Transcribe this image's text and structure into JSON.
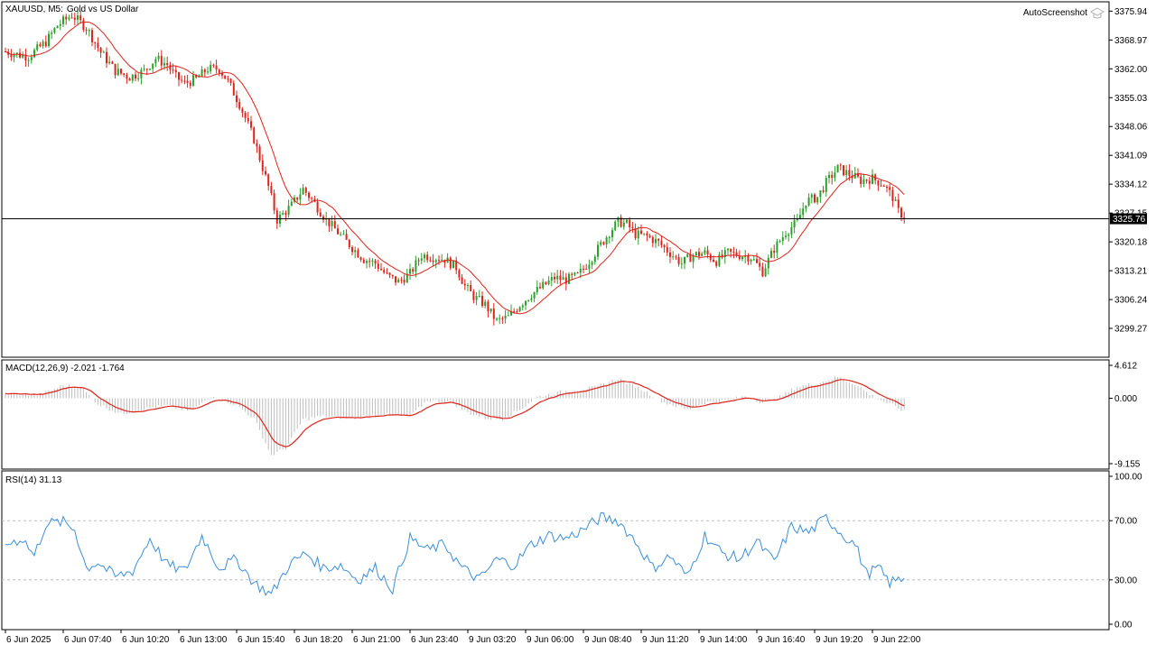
{
  "header": {
    "symbol_timeframe": "XAUUSD, M5:",
    "description": "Gold vs US Dollar",
    "watermark": "AutoScreenshot"
  },
  "colors": {
    "bull_candle": "#2ca02c",
    "bear_candle": "#e0241b",
    "moving_average": "#e0241b",
    "macd_signal": "#e0241b",
    "macd_histogram": "#bdbdbd",
    "rsi_line": "#3b8fd9",
    "rsi_levels": "#bdbdbd",
    "grid_frame": "#000000"
  },
  "chart_data": [
    {
      "type": "candlestick",
      "title": "XAUUSD, M5: Gold vs US Dollar",
      "ylim": [
        3292.3,
        3378.2
      ],
      "y_ticks": [
        "3375.94",
        "3368.97",
        "3362.00",
        "3355.03",
        "3348.06",
        "3341.09",
        "3334.12",
        "3327.15",
        "3320.18",
        "3313.21",
        "3306.24",
        "3299.27"
      ],
      "current_price": "3325.76",
      "moving_average_note": "red moving average overlay",
      "price_path": [
        [
          0,
          3366.2
        ],
        [
          4,
          3365.5
        ],
        [
          8,
          3365.0
        ],
        [
          14,
          3368.5
        ],
        [
          18,
          3372.5
        ],
        [
          23,
          3375.0
        ],
        [
          28,
          3372.0
        ],
        [
          33,
          3366.0
        ],
        [
          38,
          3361.5
        ],
        [
          43,
          3360.0
        ],
        [
          48,
          3361.5
        ],
        [
          52,
          3364.5
        ],
        [
          56,
          3363.0
        ],
        [
          59,
          3360.0
        ],
        [
          62,
          3358.5
        ],
        [
          66,
          3359.5
        ],
        [
          70,
          3362.0
        ],
        [
          74,
          3362.0
        ],
        [
          77,
          3359.0
        ],
        [
          81,
          3353.5
        ],
        [
          86,
          3345.0
        ],
        [
          91,
          3333.5
        ],
        [
          94,
          3325.5
        ],
        [
          99,
          3329.0
        ],
        [
          103,
          3333.0
        ],
        [
          107,
          3329.5
        ],
        [
          111,
          3325.5
        ],
        [
          115,
          3322.5
        ],
        [
          119,
          3319.5
        ],
        [
          124,
          3316.0
        ],
        [
          128,
          3315.0
        ],
        [
          132,
          3312.0
        ],
        [
          136,
          3310.5
        ],
        [
          140,
          3312.5
        ],
        [
          144,
          3317.0
        ],
        [
          148,
          3316.5
        ],
        [
          152,
          3316.0
        ],
        [
          156,
          3314.0
        ],
        [
          159,
          3309.5
        ],
        [
          162,
          3307.0
        ],
        [
          166,
          3305.0
        ],
        [
          170,
          3301.0
        ],
        [
          174,
          3302.0
        ],
        [
          178,
          3305.0
        ],
        [
          182,
          3307.5
        ],
        [
          186,
          3309.5
        ],
        [
          190,
          3311.5
        ],
        [
          194,
          3311.0
        ],
        [
          198,
          3312.0
        ],
        [
          202,
          3315.5
        ],
        [
          206,
          3319.5
        ],
        [
          209,
          3322.5
        ],
        [
          212,
          3325.0
        ],
        [
          215,
          3324.5
        ],
        [
          218,
          3322.0
        ],
        [
          222,
          3321.5
        ],
        [
          226,
          3320.0
        ],
        [
          230,
          3317.5
        ],
        [
          234,
          3315.0
        ],
        [
          238,
          3317.0
        ],
        [
          242,
          3317.5
        ],
        [
          246,
          3315.5
        ],
        [
          250,
          3317.5
        ],
        [
          254,
          3317.0
        ],
        [
          258,
          3316.5
        ],
        [
          262,
          3313.0
        ],
        [
          266,
          3318.5
        ],
        [
          270,
          3322.5
        ],
        [
          274,
          3325.0
        ],
        [
          277,
          3330.0
        ],
        [
          281,
          3331.0
        ],
        [
          284,
          3334.5
        ],
        [
          288,
          3338.0
        ],
        [
          292,
          3336.5
        ],
        [
          296,
          3335.0
        ],
        [
          300,
          3335.5
        ],
        [
          304,
          3334.0
        ],
        [
          307,
          3331.0
        ],
        [
          309,
          3327.5
        ],
        [
          311,
          3326.3
        ]
      ]
    },
    {
      "type": "line",
      "indicator": "MACD(12,26,9)",
      "legend": "MACD(12,26,9) -2.021 -1.764",
      "ylim": [
        -9.155,
        4.612
      ],
      "y_ticks": [
        "4.612",
        "0.000",
        "-9.155"
      ],
      "macd_path": [
        [
          0,
          0.6
        ],
        [
          12,
          0.5
        ],
        [
          20,
          1.8
        ],
        [
          26,
          1.6
        ],
        [
          32,
          -0.8
        ],
        [
          40,
          -2.2
        ],
        [
          48,
          -1.5
        ],
        [
          56,
          -1.0
        ],
        [
          64,
          -1.8
        ],
        [
          72,
          0.4
        ],
        [
          80,
          -1.0
        ],
        [
          86,
          -2.8
        ],
        [
          92,
          -8.0
        ],
        [
          97,
          -7.0
        ],
        [
          103,
          -3.0
        ],
        [
          110,
          -2.5
        ],
        [
          120,
          -2.8
        ],
        [
          130,
          -2.2
        ],
        [
          140,
          -2.6
        ],
        [
          146,
          -0.3
        ],
        [
          154,
          -0.5
        ],
        [
          160,
          -2.0
        ],
        [
          166,
          -2.8
        ],
        [
          172,
          -2.9
        ],
        [
          178,
          -1.6
        ],
        [
          184,
          0.2
        ],
        [
          194,
          1.0
        ],
        [
          204,
          1.5
        ],
        [
          212,
          2.8
        ],
        [
          220,
          1.3
        ],
        [
          228,
          -0.6
        ],
        [
          236,
          -1.6
        ],
        [
          242,
          -0.6
        ],
        [
          250,
          -0.3
        ],
        [
          256,
          0.3
        ],
        [
          262,
          -0.6
        ],
        [
          268,
          0.2
        ],
        [
          274,
          1.6
        ],
        [
          282,
          2.2
        ],
        [
          288,
          3.0
        ],
        [
          294,
          2.0
        ],
        [
          300,
          0.3
        ],
        [
          306,
          -0.8
        ],
        [
          311,
          -1.8
        ]
      ],
      "signal_last": -1.764,
      "macd_last": -2.021
    },
    {
      "type": "line",
      "indicator": "RSI(14)",
      "legend": "RSI(14) 31.13",
      "ylim": [
        0,
        100
      ],
      "y_ticks": [
        "100.00",
        "70.00",
        "30.00",
        "0.00"
      ],
      "levels": [
        70,
        30
      ],
      "rsi_path": [
        [
          0,
          54
        ],
        [
          6,
          58
        ],
        [
          10,
          46
        ],
        [
          14,
          68
        ],
        [
          20,
          69
        ],
        [
          24,
          64
        ],
        [
          28,
          38
        ],
        [
          32,
          42
        ],
        [
          38,
          32
        ],
        [
          44,
          36
        ],
        [
          50,
          58
        ],
        [
          56,
          40
        ],
        [
          62,
          36
        ],
        [
          68,
          60
        ],
        [
          74,
          38
        ],
        [
          80,
          44
        ],
        [
          86,
          28
        ],
        [
          92,
          20
        ],
        [
          98,
          40
        ],
        [
          104,
          48
        ],
        [
          110,
          38
        ],
        [
          116,
          40
        ],
        [
          122,
          30
        ],
        [
          128,
          38
        ],
        [
          134,
          24
        ],
        [
          140,
          58
        ],
        [
          146,
          50
        ],
        [
          152,
          54
        ],
        [
          158,
          38
        ],
        [
          164,
          30
        ],
        [
          170,
          44
        ],
        [
          176,
          40
        ],
        [
          182,
          54
        ],
        [
          188,
          60
        ],
        [
          194,
          58
        ],
        [
          200,
          64
        ],
        [
          206,
          72
        ],
        [
          212,
          70
        ],
        [
          218,
          56
        ],
        [
          224,
          38
        ],
        [
          230,
          46
        ],
        [
          236,
          32
        ],
        [
          242,
          60
        ],
        [
          248,
          48
        ],
        [
          254,
          44
        ],
        [
          260,
          56
        ],
        [
          266,
          42
        ],
        [
          272,
          66
        ],
        [
          278,
          62
        ],
        [
          284,
          72
        ],
        [
          290,
          60
        ],
        [
          294,
          54
        ],
        [
          298,
          34
        ],
        [
          302,
          38
        ],
        [
          306,
          28
        ],
        [
          311,
          31.13
        ]
      ]
    }
  ],
  "x_axis": {
    "labels": [
      "6 Jun 2025",
      "6 Jun 07:40",
      "6 Jun 10:20",
      "6 Jun 13:00",
      "6 Jun 15:40",
      "6 Jun 18:20",
      "6 Jun 21:00",
      "6 Jun 23:40",
      "9 Jun 03:20",
      "9 Jun 06:00",
      "9 Jun 08:40",
      "9 Jun 11:20",
      "9 Jun 14:00",
      "9 Jun 16:40",
      "9 Jun 19:20",
      "9 Jun 22:00"
    ],
    "label_bar_index": [
      0,
      20,
      40,
      60,
      80,
      100,
      120,
      140,
      160,
      180,
      200,
      220,
      240,
      260,
      280,
      300
    ]
  }
}
